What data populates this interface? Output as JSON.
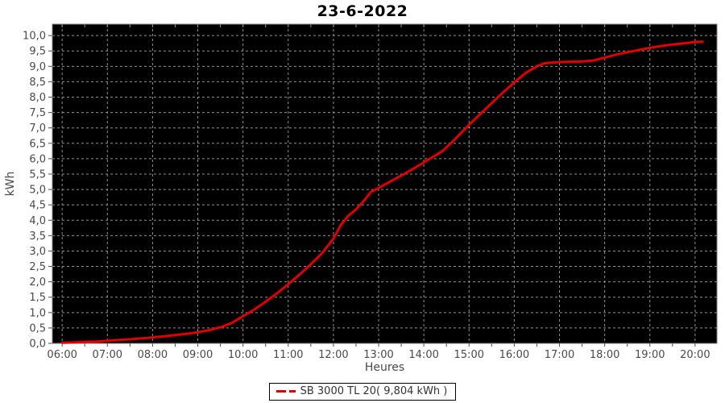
{
  "title": "23-6-2022",
  "legend": {
    "label": "SB 3000 TL 20( 9,804 kWh )"
  },
  "colors": {
    "series": "#e00000",
    "plot_bg": "#000000",
    "grid": "#909090",
    "axis_line": "#7a7a7a",
    "axis_text": "#4a4a4a",
    "tick": "#4a4a4a",
    "title_text": "#000000",
    "page_bg": "#ffffff",
    "legend_border": "#000000",
    "legend_text": "#333333"
  },
  "chart_data": {
    "type": "line",
    "title": "23-6-2022",
    "xlabel": "Heures",
    "ylabel": "kWh",
    "x_range": [
      "05:47",
      "20:29"
    ],
    "ylim": [
      0,
      10.37
    ],
    "grid": true,
    "legend_position": "bottom-center",
    "y_tick_step": 0.5,
    "y_tick_labels": [
      "0,0",
      "0,5",
      "1,0",
      "1,5",
      "2,0",
      "2,5",
      "3,0",
      "3,5",
      "4,0",
      "4,5",
      "5,0",
      "5,5",
      "6,0",
      "6,5",
      "7,0",
      "7,5",
      "8,0",
      "8,5",
      "9,0",
      "9,5",
      "10,0"
    ],
    "x_tick_labels": [
      "06:00",
      "07:00",
      "08:00",
      "09:00",
      "10:00",
      "11:00",
      "12:00",
      "13:00",
      "14:00",
      "15:00",
      "16:00",
      "17:00",
      "18:00",
      "19:00",
      "20:00"
    ],
    "minor_x_tick_minutes": 30,
    "series": [
      {
        "name": "SB 3000 TL 20( 9,804 kWh )",
        "total_display": "9,804 kWh",
        "x": [
          "06:00",
          "06:15",
          "06:30",
          "06:45",
          "07:00",
          "07:15",
          "07:30",
          "07:45",
          "08:00",
          "08:15",
          "08:30",
          "08:45",
          "09:00",
          "09:15",
          "09:30",
          "09:45",
          "10:00",
          "10:15",
          "10:30",
          "10:45",
          "11:00",
          "11:15",
          "11:30",
          "11:45",
          "12:00",
          "12:10",
          "12:20",
          "12:30",
          "12:40",
          "12:50",
          "13:00",
          "13:15",
          "13:30",
          "13:45",
          "14:00",
          "14:15",
          "14:25",
          "14:40",
          "15:00",
          "15:15",
          "15:30",
          "15:45",
          "16:00",
          "16:15",
          "16:30",
          "16:40",
          "17:00",
          "17:30",
          "17:45",
          "18:00",
          "18:15",
          "18:30",
          "18:45",
          "19:00",
          "19:15",
          "19:30",
          "19:45",
          "20:00",
          "20:10"
        ],
        "values": [
          0.02,
          0.03,
          0.05,
          0.06,
          0.08,
          0.11,
          0.13,
          0.16,
          0.19,
          0.23,
          0.27,
          0.31,
          0.36,
          0.43,
          0.52,
          0.66,
          0.88,
          1.1,
          1.35,
          1.62,
          1.92,
          2.23,
          2.57,
          2.93,
          3.4,
          3.85,
          4.15,
          4.35,
          4.62,
          4.92,
          5.05,
          5.25,
          5.45,
          5.66,
          5.88,
          6.1,
          6.25,
          6.6,
          7.1,
          7.45,
          7.8,
          8.15,
          8.48,
          8.78,
          9.0,
          9.1,
          9.14,
          9.16,
          9.19,
          9.28,
          9.38,
          9.46,
          9.53,
          9.6,
          9.66,
          9.71,
          9.75,
          9.79,
          9.804
        ]
      }
    ]
  }
}
